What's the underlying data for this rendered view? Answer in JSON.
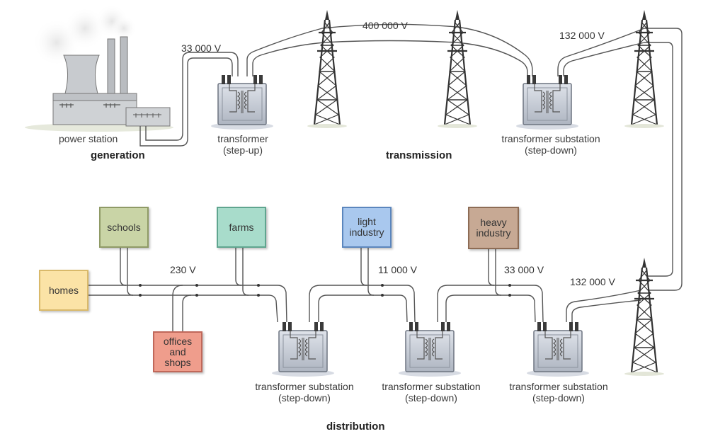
{
  "stages": {
    "generation": "generation",
    "transmission": "transmission",
    "distribution": "distribution"
  },
  "labels": {
    "power_station": "power station",
    "step_up_transformer": [
      "transformer",
      "(step-up)"
    ],
    "transmission_substation": [
      "transformer substation",
      "(step-down)"
    ],
    "distribution_substation_1": [
      "transformer substation",
      "(step-down)"
    ],
    "distribution_substation_2": [
      "transformer substation",
      "(step-down)"
    ],
    "distribution_substation_3": [
      "transformer substation",
      "(step-down)"
    ]
  },
  "voltages": {
    "generator_output": "33 000 V",
    "transmission_line": "400 000 V",
    "after_substation": "132 000 V",
    "distribution_in": "132 000 V",
    "heavy_industry": "33 000 V",
    "light_industry": "11 000 V",
    "domestic": "230 V"
  },
  "consumers": {
    "schools": "schools",
    "farms": "farms",
    "light_industry": [
      "light",
      "industry"
    ],
    "heavy_industry": [
      "heavy",
      "industry"
    ],
    "homes": "homes",
    "offices_and_shops": [
      "offices",
      "and",
      "shops"
    ]
  },
  "colors": {
    "schools": "#c9d4a6",
    "farms": "#a8dccb",
    "light_industry": "#a9c8ee",
    "heavy_industry": "#c7a994",
    "homes": "#fbe3a6",
    "offices_and_shops": "#ef9d8c",
    "transformer": "#c7cdd6",
    "wire": "#555555",
    "tower": "#333333"
  }
}
